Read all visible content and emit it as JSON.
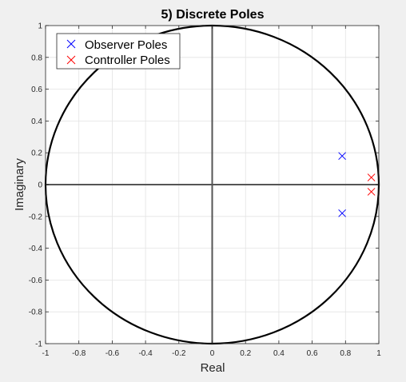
{
  "chart_data": {
    "type": "scatter",
    "title": "5) Discrete Poles",
    "xlabel": "Real",
    "ylabel": "Imaginary",
    "xlim": [
      -1,
      1
    ],
    "ylim": [
      -1,
      1
    ],
    "grid": true,
    "legend_position": "top-left",
    "x_ticks": [
      "-1",
      "-0.8",
      "-0.6",
      "-0.4",
      "-0.2",
      "0",
      "0.2",
      "0.4",
      "0.6",
      "0.8",
      "1"
    ],
    "y_ticks": [
      "1",
      "0.8",
      "0.6",
      "0.4",
      "0.2",
      "0",
      "-0.2",
      "-0.4",
      "-0.6",
      "-0.8",
      "-1"
    ],
    "unit_circle": true,
    "series": [
      {
        "name": "Observer Poles",
        "color": "#0000ff",
        "marker": "x",
        "points": [
          {
            "x": 0.78,
            "y": 0.18
          },
          {
            "x": 0.78,
            "y": -0.18
          }
        ]
      },
      {
        "name": "Controller Poles",
        "color": "#ff0000",
        "marker": "x",
        "points": [
          {
            "x": 0.955,
            "y": 0.045
          },
          {
            "x": 0.955,
            "y": -0.045
          }
        ]
      }
    ]
  }
}
